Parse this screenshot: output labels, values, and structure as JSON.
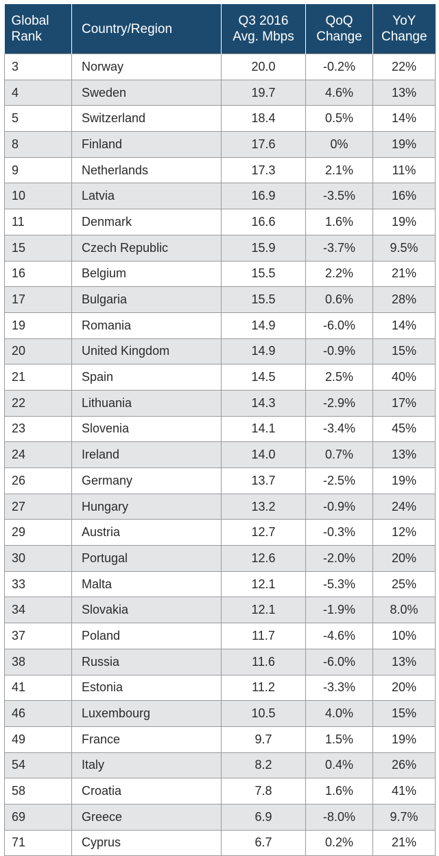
{
  "header": {
    "rank_l1": "Global",
    "rank_l2": "Rank",
    "country": "Country/Region",
    "mbps_l1": "Q3 2016",
    "mbps_l2": "Avg. Mbps",
    "qoq_l1": "QoQ",
    "qoq_l2": "Change",
    "yoy_l1": "YoY",
    "yoy_l2": "Change"
  },
  "rows": [
    {
      "rank": "3",
      "country": "Norway",
      "mbps": "20.0",
      "qoq": "-0.2%",
      "yoy": "22%"
    },
    {
      "rank": "4",
      "country": "Sweden",
      "mbps": "19.7",
      "qoq": "4.6%",
      "yoy": "13%"
    },
    {
      "rank": "5",
      "country": "Switzerland",
      "mbps": "18.4",
      "qoq": "0.5%",
      "yoy": "14%"
    },
    {
      "rank": "8",
      "country": "Finland",
      "mbps": "17.6",
      "qoq": "0%",
      "yoy": "19%"
    },
    {
      "rank": "9",
      "country": "Netherlands",
      "mbps": "17.3",
      "qoq": "2.1%",
      "yoy": "11%"
    },
    {
      "rank": "10",
      "country": "Latvia",
      "mbps": "16.9",
      "qoq": "-3.5%",
      "yoy": "16%"
    },
    {
      "rank": "11",
      "country": "Denmark",
      "mbps": "16.6",
      "qoq": "1.6%",
      "yoy": "19%"
    },
    {
      "rank": "15",
      "country": "Czech Republic",
      "mbps": "15.9",
      "qoq": "-3.7%",
      "yoy": "9.5%"
    },
    {
      "rank": "16",
      "country": "Belgium",
      "mbps": "15.5",
      "qoq": "2.2%",
      "yoy": "21%"
    },
    {
      "rank": "17",
      "country": "Bulgaria",
      "mbps": "15.5",
      "qoq": "0.6%",
      "yoy": "28%"
    },
    {
      "rank": "19",
      "country": "Romania",
      "mbps": "14.9",
      "qoq": "-6.0%",
      "yoy": "14%"
    },
    {
      "rank": "20",
      "country": "United Kingdom",
      "mbps": "14.9",
      "qoq": "-0.9%",
      "yoy": "15%"
    },
    {
      "rank": "21",
      "country": "Spain",
      "mbps": "14.5",
      "qoq": "2.5%",
      "yoy": "40%"
    },
    {
      "rank": "22",
      "country": "Lithuania",
      "mbps": "14.3",
      "qoq": "-2.9%",
      "yoy": "17%"
    },
    {
      "rank": "23",
      "country": "Slovenia",
      "mbps": "14.1",
      "qoq": "-3.4%",
      "yoy": "45%"
    },
    {
      "rank": "24",
      "country": "Ireland",
      "mbps": "14.0",
      "qoq": "0.7%",
      "yoy": "13%"
    },
    {
      "rank": "26",
      "country": "Germany",
      "mbps": "13.7",
      "qoq": "-2.5%",
      "yoy": "19%"
    },
    {
      "rank": "27",
      "country": "Hungary",
      "mbps": "13.2",
      "qoq": "-0.9%",
      "yoy": "24%"
    },
    {
      "rank": "29",
      "country": "Austria",
      "mbps": "12.7",
      "qoq": "-0.3%",
      "yoy": "12%"
    },
    {
      "rank": "30",
      "country": "Portugal",
      "mbps": "12.6",
      "qoq": "-2.0%",
      "yoy": "20%"
    },
    {
      "rank": "33",
      "country": "Malta",
      "mbps": "12.1",
      "qoq": "-5.3%",
      "yoy": "25%"
    },
    {
      "rank": "34",
      "country": "Slovakia",
      "mbps": "12.1",
      "qoq": "-1.9%",
      "yoy": "8.0%"
    },
    {
      "rank": "37",
      "country": "Poland",
      "mbps": "11.7",
      "qoq": "-4.6%",
      "yoy": "10%"
    },
    {
      "rank": "38",
      "country": "Russia",
      "mbps": "11.6",
      "qoq": "-6.0%",
      "yoy": "13%"
    },
    {
      "rank": "41",
      "country": "Estonia",
      "mbps": "11.2",
      "qoq": "-3.3%",
      "yoy": "20%"
    },
    {
      "rank": "46",
      "country": "Luxembourg",
      "mbps": "10.5",
      "qoq": "4.0%",
      "yoy": "15%"
    },
    {
      "rank": "49",
      "country": "France",
      "mbps": "9.7",
      "qoq": "1.5%",
      "yoy": "19%"
    },
    {
      "rank": "54",
      "country": "Italy",
      "mbps": "8.2",
      "qoq": "0.4%",
      "yoy": "26%"
    },
    {
      "rank": "58",
      "country": "Croatia",
      "mbps": "7.8",
      "qoq": "1.6%",
      "yoy": "41%"
    },
    {
      "rank": "69",
      "country": "Greece",
      "mbps": "6.9",
      "qoq": "-8.0%",
      "yoy": "9.7%"
    },
    {
      "rank": "71",
      "country": "Cyprus",
      "mbps": "6.7",
      "qoq": "0.2%",
      "yoy": "21%"
    }
  ],
  "colors": {
    "header_bg": "#1c4a6e",
    "alt_row_bg": "#e4e5e7",
    "border": "#9a9a9a"
  }
}
